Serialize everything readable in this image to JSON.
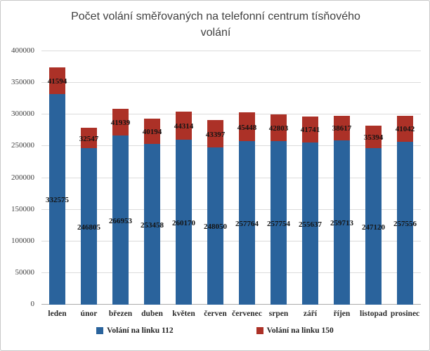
{
  "chart_data": {
    "type": "bar",
    "stacked": true,
    "title": "Počet volání směřovaných na telefonní centrum tísňového volání",
    "categories": [
      "leden",
      "únor",
      "březen",
      "duben",
      "květen",
      "červen",
      "červenec",
      "srpen",
      "září",
      "říjen",
      "listopad",
      "prosinec"
    ],
    "series": [
      {
        "name": "Volání na linku 112",
        "color": "#2a639c",
        "values": [
          332575,
          246805,
          266953,
          253458,
          260170,
          248050,
          257764,
          257754,
          255637,
          259713,
          247120,
          257556
        ]
      },
      {
        "name": "Volání na linku 150",
        "color": "#ac3127",
        "values": [
          41594,
          32547,
          41939,
          40194,
          44314,
          43397,
          45448,
          42803,
          41741,
          38617,
          35394,
          41042
        ]
      }
    ],
    "ylim": [
      0,
      400000
    ],
    "yticks": [
      0,
      50000,
      100000,
      150000,
      200000,
      250000,
      300000,
      350000,
      400000
    ],
    "grid": true,
    "data_labels": true,
    "legend_position": "bottom"
  }
}
